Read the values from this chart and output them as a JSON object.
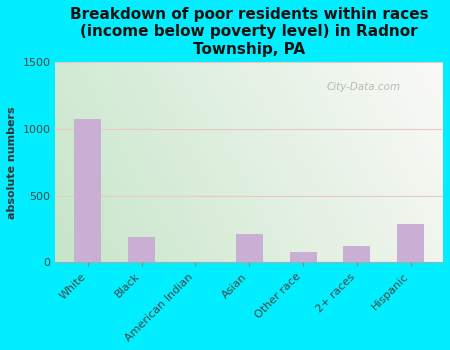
{
  "title": "Breakdown of poor residents within races\n(income below poverty level) in Radnor\nTownship, PA",
  "categories": [
    "White",
    "Black",
    "American Indian",
    "Asian",
    "Other race",
    "2+ races",
    "Hispanic"
  ],
  "values": [
    1070,
    190,
    0,
    210,
    75,
    120,
    285
  ],
  "bar_color": "#c9afd4",
  "ylabel": "absolute numbers",
  "ylim": [
    0,
    1500
  ],
  "yticks": [
    0,
    500,
    1000,
    1500
  ],
  "bg_outer": "#00eeff",
  "title_fontsize": 11,
  "tick_fontsize": 8,
  "ylabel_fontsize": 8,
  "watermark": "City-Data.com",
  "grid_color": "#ddcccc",
  "bg_grad_left": "#c8e6c9",
  "bg_grad_right": "#f5f5e8"
}
